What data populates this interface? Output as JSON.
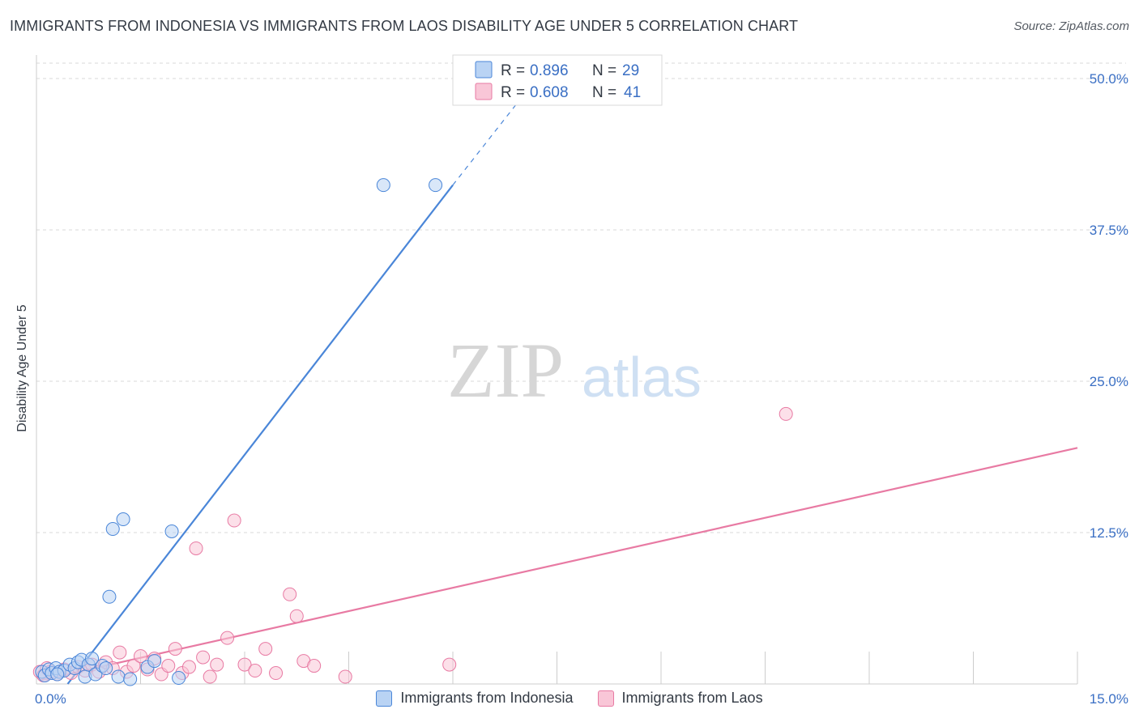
{
  "title": "IMMIGRANTS FROM INDONESIA VS IMMIGRANTS FROM LAOS DISABILITY AGE UNDER 5 CORRELATION CHART",
  "source": "Source: ZipAtlas.com",
  "watermark": {
    "zip": "ZIP",
    "atlas": "atlas"
  },
  "colors": {
    "indonesia": "#4a86d8",
    "indonesia_fill": "#b9d3f4",
    "laos": "#e87aa3",
    "laos_fill": "#f9c6d7",
    "tick": "#3a6fc4",
    "grid": "#d8d8d8"
  },
  "legend_box": [
    {
      "r_label": "R =",
      "r_value": "0.896",
      "n_label": "N =",
      "n_value": "29"
    },
    {
      "r_label": "R =",
      "r_value": "0.608",
      "n_label": "N =",
      "n_value": "41"
    }
  ],
  "chart_data": {
    "type": "scatter",
    "title": "IMMIGRANTS FROM INDONESIA VS IMMIGRANTS FROM LAOS DISABILITY AGE UNDER 5 CORRELATION CHART",
    "xlabel": "",
    "ylabel": "Disability Age Under 5",
    "xlim": [
      0,
      15
    ],
    "ylim": [
      0,
      50
    ],
    "x_ticks": [
      0,
      15
    ],
    "x_tick_labels": [
      "0.0%",
      "15.0%"
    ],
    "y_ticks": [
      12.5,
      25,
      37.5,
      50
    ],
    "y_tick_labels": [
      "12.5%",
      "25.0%",
      "37.5%",
      "50.0%"
    ],
    "grid": true,
    "legend_position": "top-center",
    "series": [
      {
        "name": "Immigrants from Indonesia",
        "R": 0.896,
        "N": 29,
        "trend": {
          "x0": 0.45,
          "y0": 0,
          "x1": 6.0,
          "y1": 41.2,
          "dashed_to": {
            "x": 7.0,
            "y": 48.5
          }
        },
        "points": [
          [
            0.08,
            1.0
          ],
          [
            0.12,
            0.7
          ],
          [
            0.18,
            1.2
          ],
          [
            0.22,
            0.9
          ],
          [
            0.28,
            1.3
          ],
          [
            0.33,
            1.0
          ],
          [
            0.4,
            1.1
          ],
          [
            0.48,
            1.6
          ],
          [
            0.55,
            1.3
          ],
          [
            0.6,
            1.8
          ],
          [
            0.65,
            2.0
          ],
          [
            0.7,
            0.6
          ],
          [
            0.75,
            1.6
          ],
          [
            0.8,
            2.1
          ],
          [
            0.85,
            0.8
          ],
          [
            0.95,
            1.5
          ],
          [
            1.0,
            1.3
          ],
          [
            1.05,
            7.2
          ],
          [
            1.1,
            12.8
          ],
          [
            1.18,
            0.6
          ],
          [
            1.25,
            13.6
          ],
          [
            1.35,
            0.4
          ],
          [
            1.6,
            1.4
          ],
          [
            1.7,
            1.9
          ],
          [
            1.95,
            12.6
          ],
          [
            2.05,
            0.5
          ],
          [
            5.0,
            41.2
          ],
          [
            5.75,
            41.2
          ],
          [
            0.3,
            0.8
          ]
        ]
      },
      {
        "name": "Immigrants from Laos",
        "R": 0.608,
        "N": 41,
        "trend": {
          "x0": 0.05,
          "y0": 0.3,
          "x1": 15.0,
          "y1": 19.5
        },
        "points": [
          [
            0.05,
            1.0
          ],
          [
            0.1,
            0.7
          ],
          [
            0.15,
            1.3
          ],
          [
            0.2,
            1.0
          ],
          [
            0.3,
            0.8
          ],
          [
            0.4,
            1.2
          ],
          [
            0.5,
            0.9
          ],
          [
            0.6,
            1.4
          ],
          [
            0.7,
            1.1
          ],
          [
            0.8,
            1.6
          ],
          [
            0.9,
            1.0
          ],
          [
            1.0,
            1.8
          ],
          [
            1.1,
            1.3
          ],
          [
            1.2,
            2.6
          ],
          [
            1.3,
            1.0
          ],
          [
            1.4,
            1.5
          ],
          [
            1.5,
            2.3
          ],
          [
            1.6,
            1.2
          ],
          [
            1.7,
            2.1
          ],
          [
            1.8,
            0.8
          ],
          [
            1.9,
            1.5
          ],
          [
            2.0,
            2.9
          ],
          [
            2.1,
            0.9
          ],
          [
            2.2,
            1.4
          ],
          [
            2.3,
            11.2
          ],
          [
            2.4,
            2.2
          ],
          [
            2.5,
            0.6
          ],
          [
            2.6,
            1.6
          ],
          [
            2.75,
            3.8
          ],
          [
            2.85,
            13.5
          ],
          [
            3.0,
            1.6
          ],
          [
            3.15,
            1.1
          ],
          [
            3.3,
            2.9
          ],
          [
            3.45,
            0.9
          ],
          [
            3.65,
            7.4
          ],
          [
            3.75,
            5.6
          ],
          [
            3.85,
            1.9
          ],
          [
            4.0,
            1.5
          ],
          [
            4.45,
            0.6
          ],
          [
            5.95,
            1.6
          ],
          [
            10.8,
            22.3
          ]
        ]
      }
    ]
  },
  "bottom_legend": [
    {
      "label": "Immigrants from Indonesia"
    },
    {
      "label": "Immigrants from Laos"
    }
  ]
}
